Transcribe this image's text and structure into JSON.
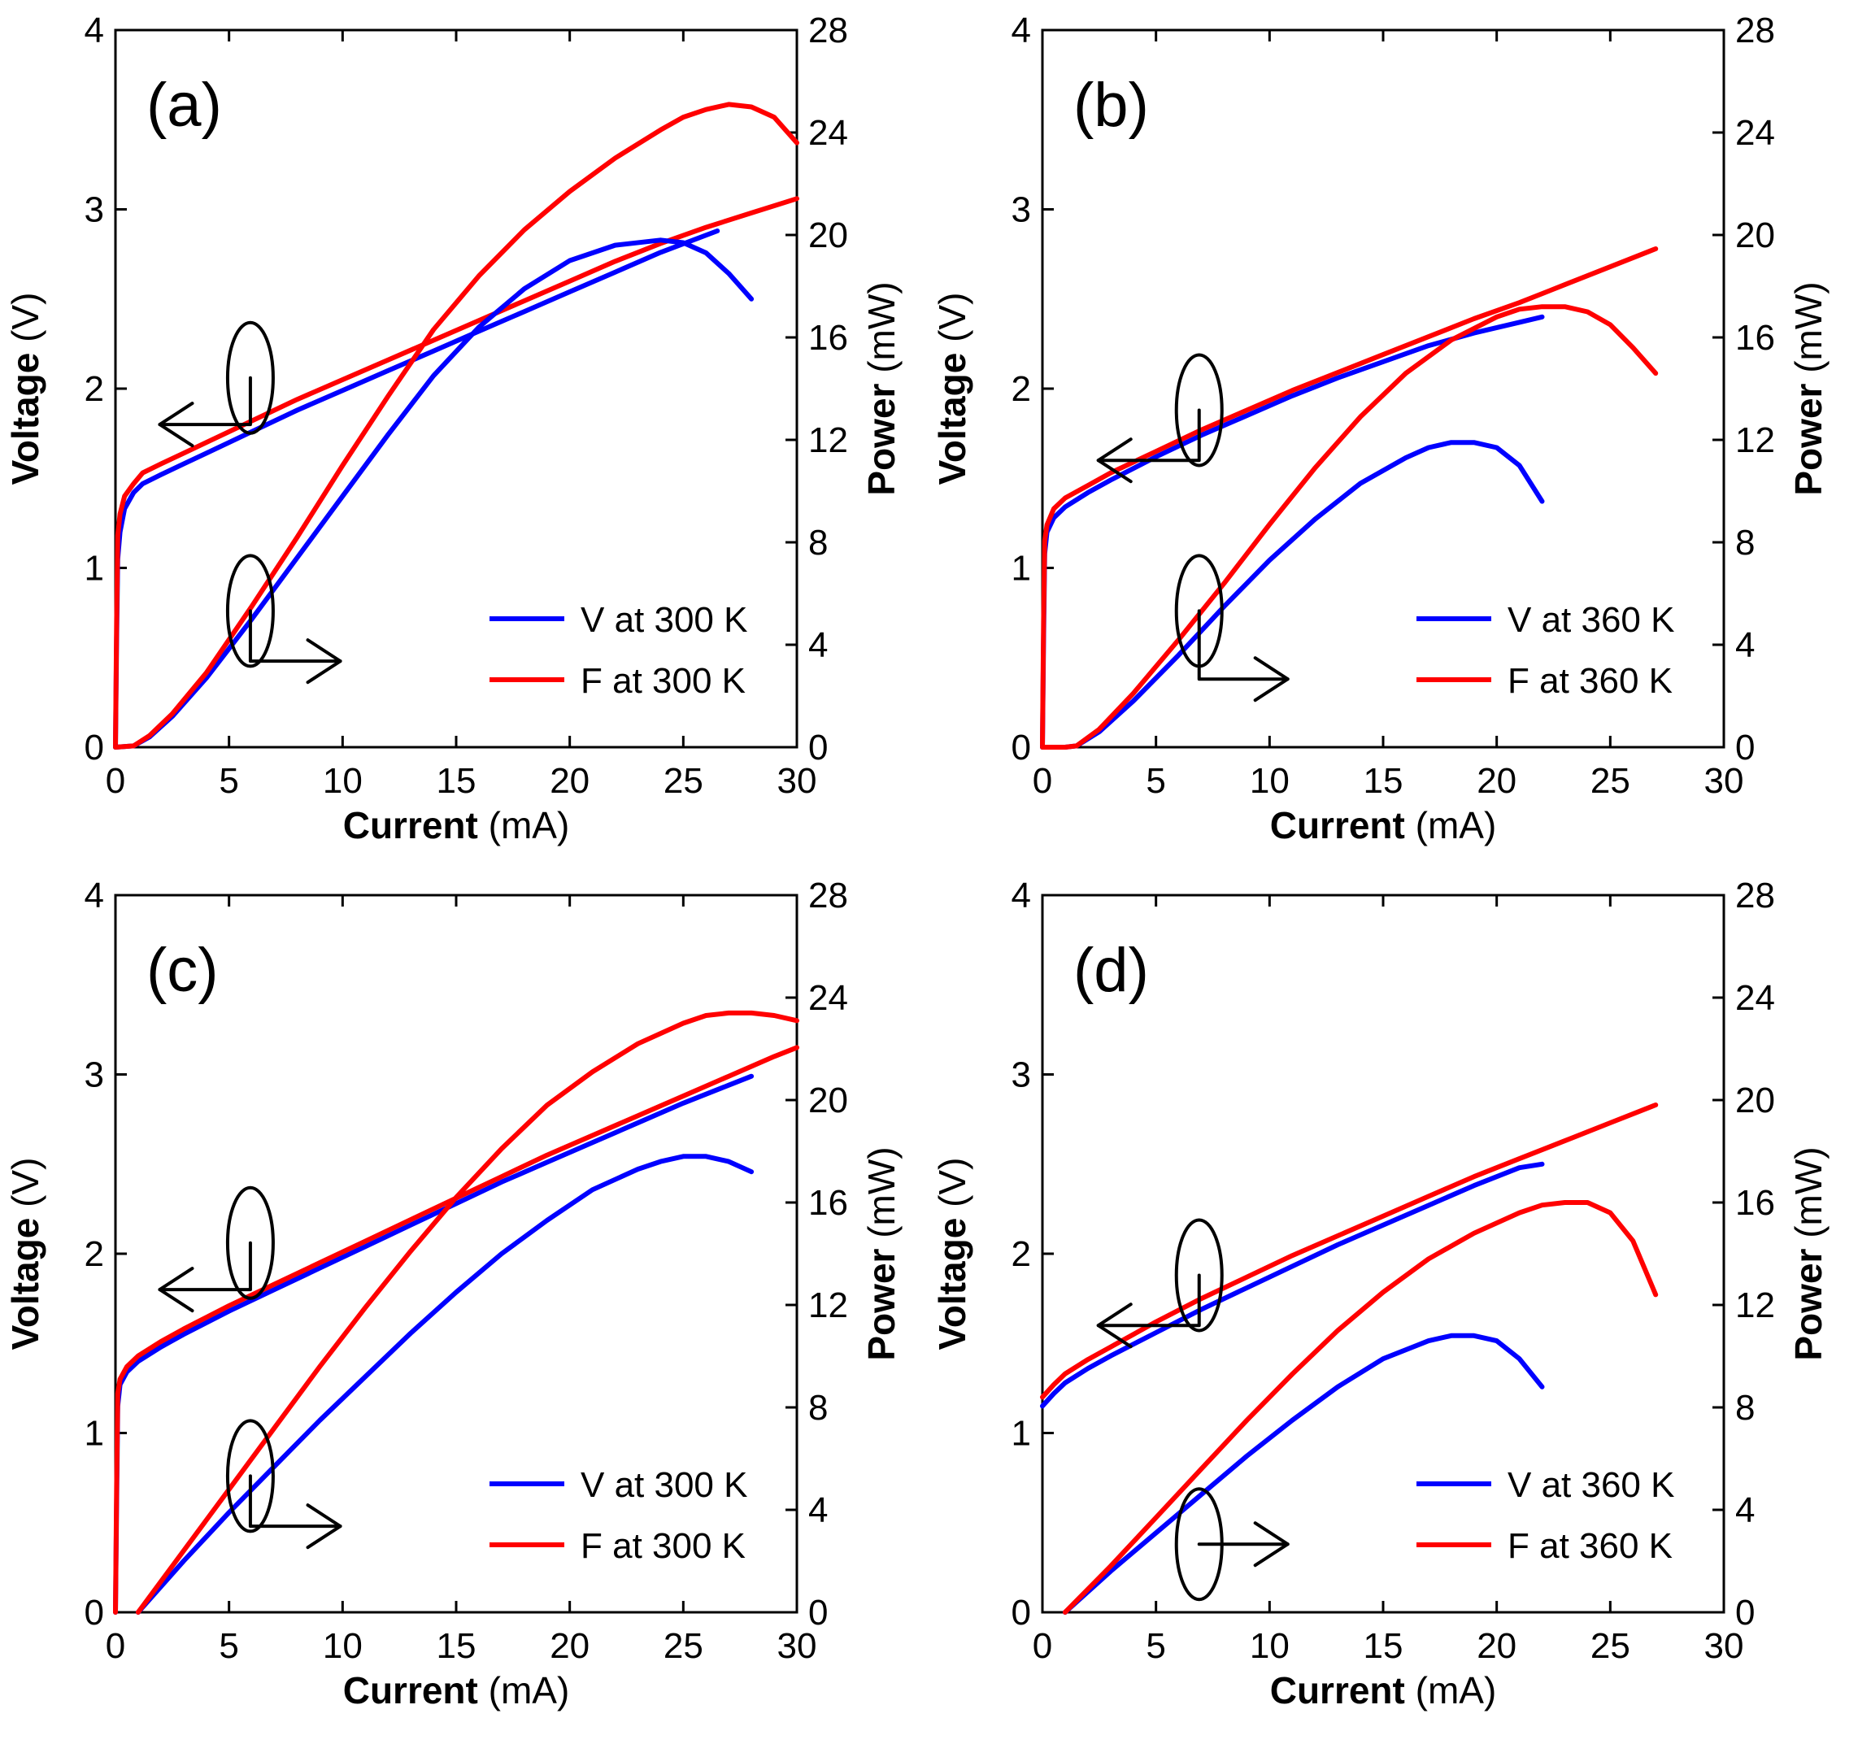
{
  "colors": {
    "V": "#0000ff",
    "F": "#ff0000",
    "axis": "#000000"
  },
  "chart_data": [
    {
      "type": "line",
      "panel_label": "(a)",
      "xlabel_bold": "Current",
      "xlabel_unit": "(mA)",
      "ylabel_bold": "Voltage",
      "ylabel_unit": "(V)",
      "y2label_bold": "Power",
      "y2label_unit": "(mW)",
      "xlim": [
        0,
        30
      ],
      "ylim": [
        0,
        4
      ],
      "y2lim": [
        0,
        28
      ],
      "xticks": [
        0,
        5,
        10,
        15,
        20,
        25,
        30
      ],
      "yticks": [
        0,
        1,
        2,
        3,
        4
      ],
      "y2ticks": [
        0,
        4,
        8,
        12,
        16,
        20,
        24,
        28
      ],
      "legend_position": "bottom-right",
      "series": [
        {
          "name": "V at 300 K",
          "key": "V",
          "quantity": "voltage",
          "axis": "left",
          "x": [
            0,
            0.05,
            0.1,
            0.2,
            0.4,
            0.8,
            1.2,
            2,
            3,
            4,
            5,
            6,
            8,
            10,
            12,
            14,
            16,
            18,
            20,
            22,
            24,
            26.5
          ],
          "y": [
            0,
            0.6,
            1.05,
            1.2,
            1.33,
            1.42,
            1.47,
            1.52,
            1.58,
            1.64,
            1.7,
            1.76,
            1.88,
            1.99,
            2.1,
            2.21,
            2.32,
            2.43,
            2.54,
            2.65,
            2.76,
            2.88
          ]
        },
        {
          "name": "F at 300 K",
          "key": "F",
          "quantity": "voltage",
          "axis": "left",
          "x": [
            0,
            0.05,
            0.1,
            0.2,
            0.4,
            0.8,
            1.2,
            2,
            3,
            4,
            5,
            6,
            8,
            10,
            12,
            14,
            16,
            18,
            20,
            22,
            24,
            26,
            28,
            30
          ],
          "y": [
            0,
            0.7,
            1.18,
            1.3,
            1.4,
            1.47,
            1.53,
            1.58,
            1.64,
            1.7,
            1.76,
            1.82,
            1.94,
            2.05,
            2.16,
            2.27,
            2.38,
            2.49,
            2.6,
            2.71,
            2.81,
            2.9,
            2.98,
            3.06
          ]
        },
        {
          "name": "V at 300 K",
          "key": "V",
          "quantity": "power",
          "axis": "right",
          "x": [
            0,
            0.8,
            1.5,
            2.5,
            4,
            6,
            8,
            10,
            12,
            14,
            16,
            18,
            20,
            22,
            24,
            25,
            26,
            27,
            28
          ],
          "y": [
            0,
            0.05,
            0.4,
            1.2,
            2.7,
            5,
            7.4,
            9.8,
            12.2,
            14.5,
            16.4,
            17.9,
            19,
            19.6,
            19.8,
            19.7,
            19.3,
            18.5,
            17.5
          ]
        },
        {
          "name": "F at 300 K",
          "key": "F",
          "quantity": "power",
          "axis": "right",
          "x": [
            0,
            0.8,
            1.5,
            2.5,
            4,
            6,
            8,
            10,
            12,
            14,
            16,
            18,
            20,
            22,
            24,
            25,
            26,
            27,
            28,
            29,
            30
          ],
          "y": [
            0,
            0.05,
            0.45,
            1.3,
            2.9,
            5.5,
            8.2,
            11,
            13.7,
            16.3,
            18.4,
            20.2,
            21.7,
            23,
            24.1,
            24.6,
            24.9,
            25.1,
            25,
            24.6,
            23.6
          ]
        }
      ]
    },
    {
      "type": "line",
      "panel_label": "(b)",
      "xlabel_bold": "Current",
      "xlabel_unit": "(mA)",
      "ylabel_bold": "Voltage",
      "ylabel_unit": "(V)",
      "y2label_bold": "Power",
      "y2label_unit": "(mW)",
      "xlim": [
        0,
        30
      ],
      "ylim": [
        0,
        4
      ],
      "y2lim": [
        0,
        28
      ],
      "xticks": [
        0,
        5,
        10,
        15,
        20,
        25,
        30
      ],
      "yticks": [
        0,
        1,
        2,
        3,
        4
      ],
      "y2ticks": [
        0,
        4,
        8,
        12,
        16,
        20,
        24,
        28
      ],
      "legend_position": "bottom-right",
      "series": [
        {
          "name": "V at 360 K",
          "key": "V",
          "quantity": "voltage",
          "axis": "left",
          "x": [
            0,
            0.05,
            0.1,
            0.2,
            0.5,
            1,
            2,
            3,
            5,
            7,
            9,
            11,
            13,
            15,
            17,
            19,
            21,
            22
          ],
          "y": [
            0,
            0.6,
            1.08,
            1.2,
            1.28,
            1.34,
            1.42,
            1.49,
            1.62,
            1.74,
            1.85,
            1.96,
            2.06,
            2.15,
            2.24,
            2.31,
            2.37,
            2.4
          ]
        },
        {
          "name": "F at 360 K",
          "key": "F",
          "quantity": "voltage",
          "axis": "left",
          "x": [
            0,
            0.05,
            0.1,
            0.2,
            0.5,
            1,
            2,
            3,
            5,
            7,
            9,
            11,
            13,
            15,
            17,
            19,
            21,
            23,
            25,
            27
          ],
          "y": [
            0,
            0.7,
            1.15,
            1.24,
            1.33,
            1.39,
            1.46,
            1.53,
            1.65,
            1.77,
            1.88,
            1.99,
            2.09,
            2.19,
            2.29,
            2.39,
            2.48,
            2.58,
            2.68,
            2.78
          ]
        },
        {
          "name": "V at 360 K",
          "key": "V",
          "quantity": "power",
          "axis": "right",
          "x": [
            0,
            1,
            1.5,
            2.5,
            4,
            6,
            8,
            10,
            12,
            14,
            16,
            17,
            18,
            19,
            20,
            21,
            22
          ],
          "y": [
            0,
            0,
            0.05,
            0.6,
            1.8,
            3.6,
            5.5,
            7.3,
            8.9,
            10.3,
            11.3,
            11.7,
            11.9,
            11.9,
            11.7,
            11,
            9.6
          ]
        },
        {
          "name": "F at 360 K",
          "key": "F",
          "quantity": "power",
          "axis": "right",
          "x": [
            0,
            1,
            1.5,
            2.5,
            4,
            6,
            8,
            10,
            12,
            14,
            16,
            18,
            20,
            21,
            22,
            23,
            24,
            25,
            26,
            27
          ],
          "y": [
            0,
            0,
            0.05,
            0.7,
            2.1,
            4.2,
            6.4,
            8.7,
            10.9,
            12.9,
            14.6,
            15.9,
            16.8,
            17.1,
            17.2,
            17.2,
            17,
            16.5,
            15.6,
            14.6
          ]
        }
      ]
    },
    {
      "type": "line",
      "panel_label": "(c)",
      "xlabel_bold": "Current",
      "xlabel_unit": "(mA)",
      "ylabel_bold": "Voltage",
      "ylabel_unit": "(V)",
      "y2label_bold": "Power",
      "y2label_unit": "(mW)",
      "xlim": [
        0,
        30
      ],
      "ylim": [
        0,
        4
      ],
      "y2lim": [
        0,
        28
      ],
      "xticks": [
        0,
        5,
        10,
        15,
        20,
        25,
        30
      ],
      "yticks": [
        0,
        1,
        2,
        3,
        4
      ],
      "y2ticks": [
        0,
        4,
        8,
        12,
        16,
        20,
        24,
        28
      ],
      "legend_position": "bottom-right",
      "series": [
        {
          "name": "V at 300 K",
          "key": "V",
          "quantity": "voltage",
          "axis": "left",
          "x": [
            0,
            0.05,
            0.1,
            0.2,
            0.5,
            1,
            2,
            3,
            5,
            7,
            9,
            11,
            13,
            15,
            17,
            19,
            21,
            23,
            25,
            27,
            28
          ],
          "y": [
            0,
            0.6,
            1.15,
            1.27,
            1.34,
            1.4,
            1.48,
            1.55,
            1.68,
            1.8,
            1.92,
            2.04,
            2.16,
            2.28,
            2.4,
            2.51,
            2.62,
            2.73,
            2.84,
            2.94,
            2.99
          ]
        },
        {
          "name": "F at 300 K",
          "key": "F",
          "quantity": "voltage",
          "axis": "left",
          "x": [
            0,
            0.05,
            0.1,
            0.2,
            0.5,
            1,
            2,
            3,
            5,
            7,
            9,
            11,
            13,
            15,
            17,
            19,
            21,
            23,
            25,
            27,
            29,
            30
          ],
          "y": [
            0,
            0.7,
            1.22,
            1.3,
            1.37,
            1.43,
            1.51,
            1.58,
            1.71,
            1.83,
            1.95,
            2.07,
            2.19,
            2.31,
            2.43,
            2.55,
            2.66,
            2.77,
            2.88,
            2.99,
            3.1,
            3.15
          ]
        },
        {
          "name": "V at 300 K",
          "key": "V",
          "quantity": "power",
          "axis": "right",
          "x": [
            1,
            3,
            5,
            7,
            9,
            11,
            13,
            15,
            17,
            19,
            21,
            23,
            24,
            25,
            26,
            27,
            28
          ],
          "y": [
            0,
            2,
            3.9,
            5.7,
            7.5,
            9.2,
            10.9,
            12.5,
            14,
            15.3,
            16.5,
            17.3,
            17.6,
            17.8,
            17.8,
            17.6,
            17.2
          ]
        },
        {
          "name": "F at 300 K",
          "key": "F",
          "quantity": "power",
          "axis": "right",
          "x": [
            1,
            3,
            5,
            7,
            9,
            11,
            13,
            15,
            17,
            19,
            21,
            23,
            25,
            26,
            27,
            28,
            29,
            30
          ],
          "y": [
            0,
            2.4,
            4.8,
            7.2,
            9.6,
            11.9,
            14.1,
            16.2,
            18.1,
            19.8,
            21.1,
            22.2,
            23,
            23.3,
            23.4,
            23.4,
            23.3,
            23.1
          ]
        }
      ]
    },
    {
      "type": "line",
      "panel_label": "(d)",
      "xlabel_bold": "Current",
      "xlabel_unit": "(mA)",
      "ylabel_bold": "Voltage",
      "ylabel_unit": "(V)",
      "y2label_bold": "Power",
      "y2label_unit": "(mW)",
      "xlim": [
        0,
        30
      ],
      "ylim": [
        0,
        4
      ],
      "y2lim": [
        0,
        28
      ],
      "xticks": [
        0,
        5,
        10,
        15,
        20,
        25,
        30
      ],
      "yticks": [
        0,
        1,
        2,
        3,
        4
      ],
      "y2ticks": [
        0,
        4,
        8,
        12,
        16,
        20,
        24,
        28
      ],
      "legend_position": "bottom-right",
      "series": [
        {
          "name": "V at 360 K",
          "key": "V",
          "quantity": "voltage",
          "axis": "left",
          "x": [
            0,
            0.5,
            1,
            2,
            3,
            5,
            7,
            9,
            11,
            13,
            15,
            17,
            19,
            21,
            22
          ],
          "y": [
            1.15,
            1.22,
            1.28,
            1.36,
            1.43,
            1.56,
            1.69,
            1.81,
            1.93,
            2.05,
            2.16,
            2.27,
            2.38,
            2.48,
            2.5
          ]
        },
        {
          "name": "F at 360 K",
          "key": "F",
          "quantity": "voltage",
          "axis": "left",
          "x": [
            0,
            0.5,
            1,
            2,
            3,
            5,
            7,
            9,
            11,
            13,
            15,
            17,
            19,
            21,
            23,
            25,
            27
          ],
          "y": [
            1.2,
            1.27,
            1.33,
            1.41,
            1.48,
            1.62,
            1.75,
            1.87,
            1.99,
            2.1,
            2.21,
            2.32,
            2.43,
            2.53,
            2.63,
            2.73,
            2.83
          ]
        },
        {
          "name": "V at 360 K",
          "key": "V",
          "quantity": "power",
          "axis": "right",
          "x": [
            1,
            3,
            5,
            7,
            9,
            11,
            13,
            15,
            17,
            18,
            19,
            20,
            21,
            22
          ],
          "y": [
            0,
            1.6,
            3.1,
            4.6,
            6.1,
            7.5,
            8.8,
            9.9,
            10.6,
            10.8,
            10.8,
            10.6,
            9.9,
            8.8
          ]
        },
        {
          "name": "F at 360 K",
          "key": "F",
          "quantity": "power",
          "axis": "right",
          "x": [
            1,
            3,
            5,
            7,
            9,
            11,
            13,
            15,
            17,
            19,
            21,
            22,
            23,
            24,
            25,
            26,
            27
          ],
          "y": [
            0,
            1.8,
            3.7,
            5.6,
            7.5,
            9.3,
            11,
            12.5,
            13.8,
            14.8,
            15.6,
            15.9,
            16,
            16,
            15.6,
            14.5,
            12.4
          ]
        }
      ]
    }
  ]
}
